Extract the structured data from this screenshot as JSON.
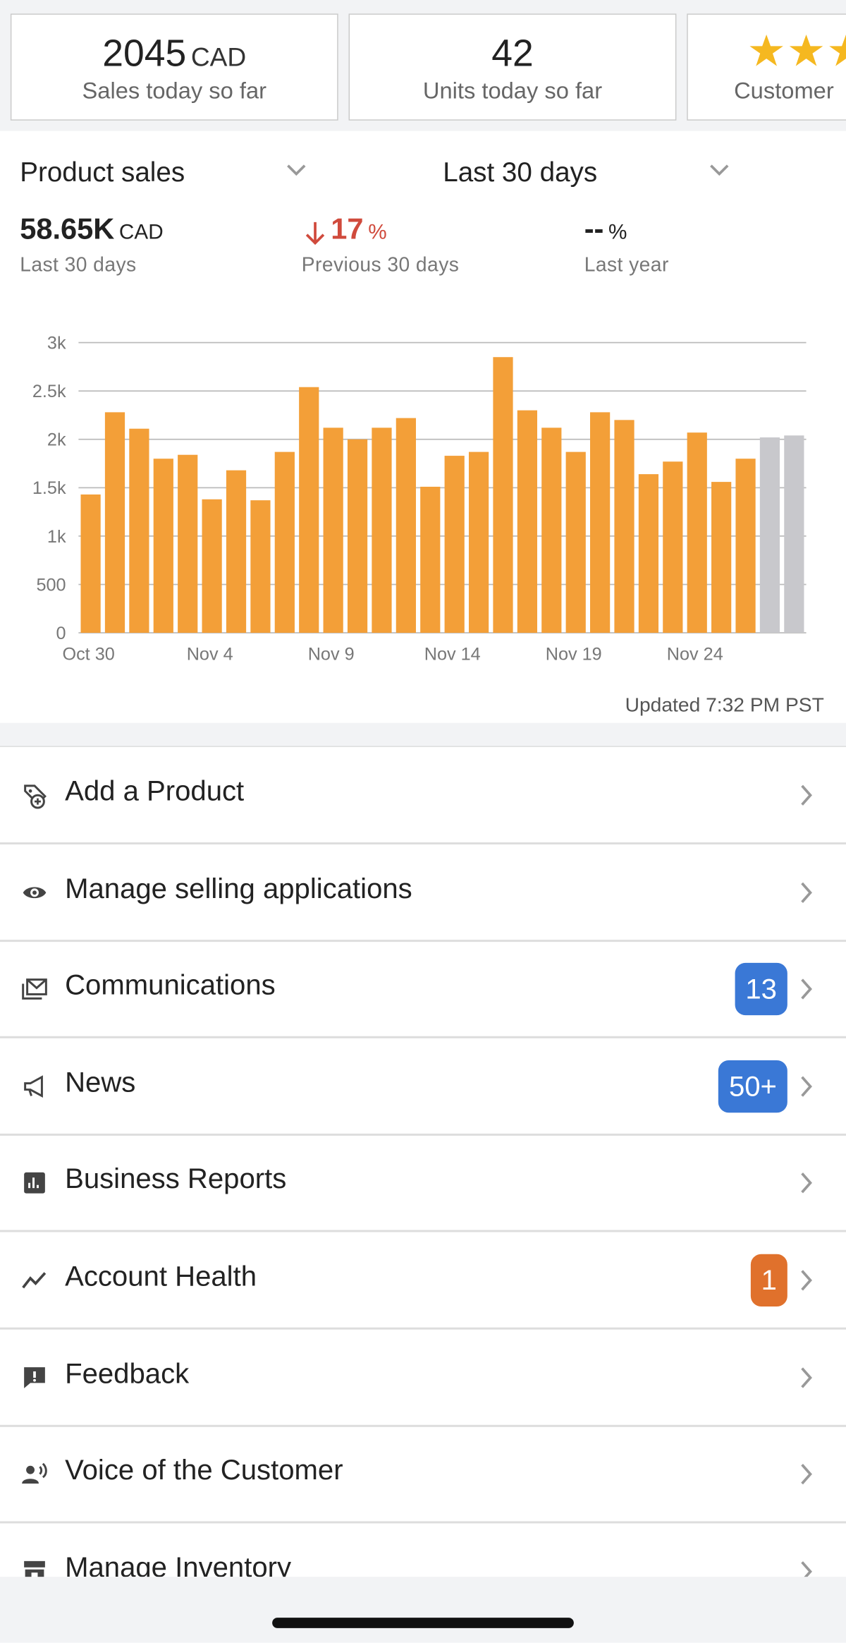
{
  "cards": [
    {
      "value": "2045",
      "unit": "CAD",
      "label": "Sales today so far"
    },
    {
      "value": "42",
      "label": "Units today so far"
    },
    {
      "label": "Customer"
    }
  ],
  "selectors": {
    "metric": "Product sales",
    "period": "Last 30 days"
  },
  "stats": [
    {
      "value": "58.65K",
      "unit": "CAD",
      "label": "Last 30 days"
    },
    {
      "value": "17",
      "unit": "%",
      "label": "Previous 30 days"
    },
    {
      "value": "--",
      "unit": "%",
      "label": "Last year"
    }
  ],
  "chart_data": {
    "type": "bar",
    "categories": [
      "Oct 30",
      null,
      null,
      null,
      null,
      "Nov 4",
      null,
      null,
      null,
      null,
      "Nov 9",
      null,
      null,
      null,
      null,
      "Nov 14",
      null,
      null,
      null,
      null,
      "Nov 19",
      null,
      null,
      null,
      null,
      "Nov 24",
      null,
      null,
      null,
      null
    ],
    "values": [
      1430,
      2280,
      2110,
      1800,
      1840,
      1380,
      1680,
      1370,
      1870,
      2540,
      2120,
      2000,
      2120,
      2220,
      1510,
      1830,
      1870,
      2850,
      2300,
      2120,
      1870,
      2280,
      2200,
      1640,
      1770,
      2070,
      1560,
      1800,
      2020,
      2040
    ],
    "colors": [
      "#f39f38",
      "#f39f38",
      "#f39f38",
      "#f39f38",
      "#f39f38",
      "#f39f38",
      "#f39f38",
      "#f39f38",
      "#f39f38",
      "#f39f38",
      "#f39f38",
      "#f39f38",
      "#f39f38",
      "#f39f38",
      "#f39f38",
      "#f39f38",
      "#f39f38",
      "#f39f38",
      "#f39f38",
      "#f39f38",
      "#f39f38",
      "#f39f38",
      "#f39f38",
      "#f39f38",
      "#f39f38",
      "#f39f38",
      "#f39f38",
      "#f39f38",
      "#c8c8cc",
      "#c8c8cc"
    ],
    "ylim": [
      0,
      3000
    ],
    "yticks": [
      0,
      500,
      {
        "value": 1000,
        "label": "1k"
      },
      {
        "value": 1500,
        "label": "1.5k"
      },
      {
        "value": 2000,
        "label": "2k"
      },
      {
        "value": 2500,
        "label": "2.5k"
      },
      {
        "value": 3000,
        "label": "3k"
      }
    ],
    "grid": true,
    "annotation": "Updated 7:32 PM PST"
  },
  "menu": [
    {
      "label": "Add a Product"
    },
    {
      "label": "Manage selling applications"
    },
    {
      "label": "Communications",
      "badge": "13",
      "badge_color": "#3a78d6"
    },
    {
      "label": "News",
      "badge": "50+",
      "badge_color": "#3a78d6"
    },
    {
      "label": "Business Reports"
    },
    {
      "label": "Account Health",
      "badge": "1",
      "badge_color": "#e0712c"
    },
    {
      "label": "Feedback"
    },
    {
      "label": "Voice of the Customer"
    },
    {
      "label": "Manage Inventory"
    }
  ]
}
